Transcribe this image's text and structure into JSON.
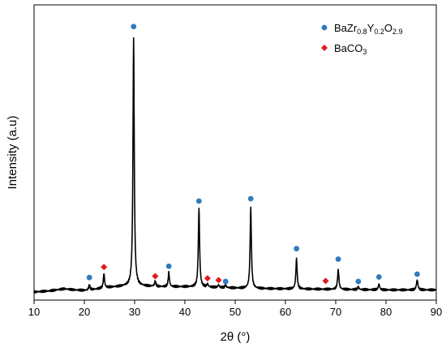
{
  "chart_data": {
    "type": "line",
    "xlabel": "2θ (°)",
    "ylabel": "Intensity (a.u)",
    "xlim": [
      10,
      90
    ],
    "x_ticks": [
      10,
      20,
      30,
      40,
      50,
      60,
      70,
      80,
      90
    ],
    "y_ticks_shown": false,
    "grid": false,
    "legend_position": "top-right",
    "pattern": {
      "baseline": [
        [
          10,
          0.0
        ],
        [
          13,
          0.004
        ],
        [
          16,
          0.012
        ],
        [
          18,
          0.008
        ],
        [
          20,
          0.006
        ],
        [
          22,
          0.01
        ],
        [
          25,
          0.018
        ],
        [
          28,
          0.022
        ],
        [
          32,
          0.022
        ],
        [
          35,
          0.02
        ],
        [
          40,
          0.02
        ],
        [
          45,
          0.018
        ],
        [
          50,
          0.015
        ],
        [
          55,
          0.013
        ],
        [
          60,
          0.012
        ],
        [
          65,
          0.011
        ],
        [
          70,
          0.01
        ],
        [
          75,
          0.009
        ],
        [
          80,
          0.008
        ],
        [
          85,
          0.008
        ],
        [
          90,
          0.008
        ]
      ],
      "peaks": [
        {
          "pos": 21.0,
          "height": 0.02,
          "width": 0.28
        },
        {
          "pos": 23.9,
          "height": 0.055,
          "width": 0.28
        },
        {
          "pos": 29.8,
          "height": 0.945,
          "width": 0.3
        },
        {
          "pos": 34.1,
          "height": 0.02,
          "width": 0.3
        },
        {
          "pos": 36.8,
          "height": 0.055,
          "width": 0.28
        },
        {
          "pos": 42.8,
          "height": 0.3,
          "width": 0.3
        },
        {
          "pos": 44.5,
          "height": 0.012,
          "width": 0.3
        },
        {
          "pos": 46.7,
          "height": 0.01,
          "width": 0.3
        },
        {
          "pos": 48.1,
          "height": 0.01,
          "width": 0.3
        },
        {
          "pos": 53.1,
          "height": 0.305,
          "width": 0.3
        },
        {
          "pos": 62.2,
          "height": 0.115,
          "width": 0.3
        },
        {
          "pos": 70.5,
          "height": 0.075,
          "width": 0.32
        },
        {
          "pos": 74.5,
          "height": 0.01,
          "width": 0.32
        },
        {
          "pos": 78.6,
          "height": 0.022,
          "width": 0.32
        },
        {
          "pos": 86.2,
          "height": 0.038,
          "width": 0.34
        }
      ]
    },
    "series": [
      {
        "name": "BaZr0.8Y0.2O2.9",
        "name_parts": [
          {
            "t": "BaZr",
            "sub": false
          },
          {
            "t": "0.8",
            "sub": true
          },
          {
            "t": "Y",
            "sub": false
          },
          {
            "t": "0.2",
            "sub": true
          },
          {
            "t": "O",
            "sub": false
          },
          {
            "t": "2.9",
            "sub": true
          }
        ],
        "marker": "circle",
        "color": "#2f7bbf",
        "points": [
          [
            21.0,
            0.055
          ],
          [
            29.8,
            1.01
          ],
          [
            36.8,
            0.098
          ],
          [
            42.8,
            0.346
          ],
          [
            48.1,
            0.04
          ],
          [
            53.1,
            0.355
          ],
          [
            62.2,
            0.165
          ],
          [
            70.5,
            0.125
          ],
          [
            74.5,
            0.04
          ],
          [
            78.6,
            0.057
          ],
          [
            86.2,
            0.068
          ]
        ]
      },
      {
        "name": "BaCO3",
        "name_parts": [
          {
            "t": "BaCO",
            "sub": false
          },
          {
            "t": "3",
            "sub": true
          }
        ],
        "marker": "diamond",
        "color": "#e31a1c",
        "points": [
          [
            23.9,
            0.095
          ],
          [
            34.1,
            0.06
          ],
          [
            44.5,
            0.052
          ],
          [
            46.7,
            0.045
          ],
          [
            68.0,
            0.042
          ]
        ]
      }
    ]
  }
}
